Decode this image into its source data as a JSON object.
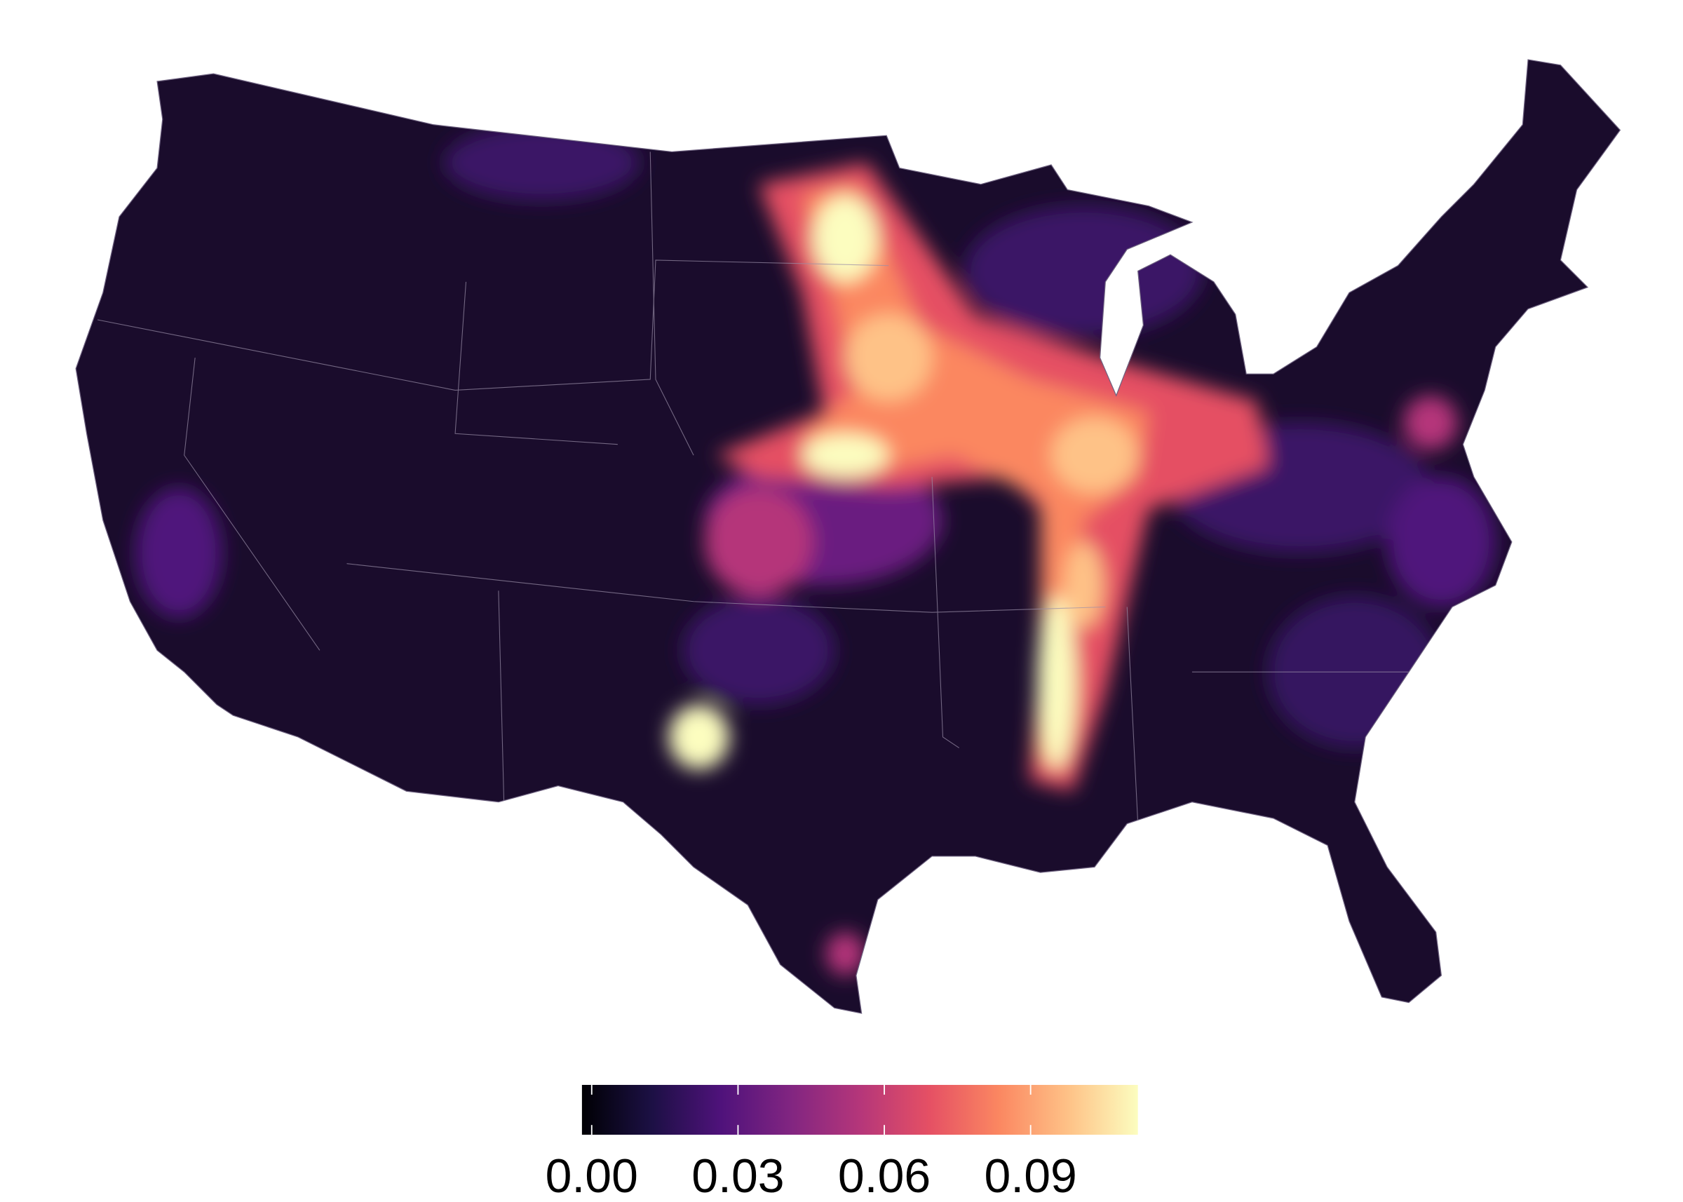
{
  "chart_data": {
    "type": "choropleth",
    "colorbar": {
      "lim": [
        -0.002,
        0.112
      ],
      "ticks": [
        {
          "value": 0,
          "label": "0.00"
        },
        {
          "value": 0.03,
          "label": "0.03"
        },
        {
          "value": 0.06,
          "label": "0.06"
        },
        {
          "value": 0.09,
          "label": "0.09"
        }
      ],
      "colors": [
        "#000004",
        "#1c1044",
        "#4f127b",
        "#812581",
        "#b5367a",
        "#e55064",
        "#fb8761",
        "#fec287",
        "#fcfdbf"
      ]
    }
  }
}
